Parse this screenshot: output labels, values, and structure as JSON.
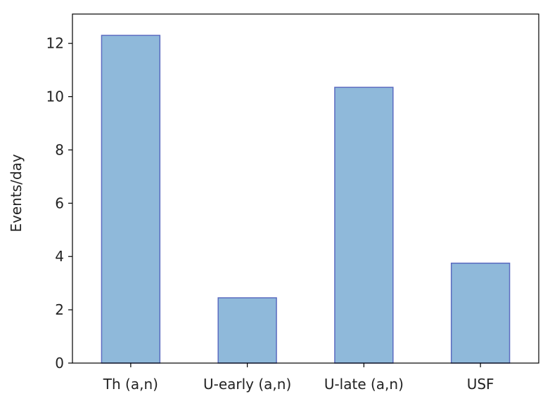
{
  "chart_data": {
    "type": "bar",
    "categories": [
      "Th (a,n)",
      "U-early (a,n)",
      "U-late (a,n)",
      "USF"
    ],
    "values": [
      12.3,
      2.45,
      10.35,
      3.75
    ],
    "title": "",
    "xlabel": "",
    "ylabel": "Events/day",
    "ylim": [
      0,
      13.1
    ],
    "yticks": [
      0,
      2,
      4,
      6,
      8,
      10,
      12
    ],
    "grid": false,
    "colors": {
      "bar_fill": "#8fb9da",
      "bar_edge": "#5b6bc0"
    }
  }
}
